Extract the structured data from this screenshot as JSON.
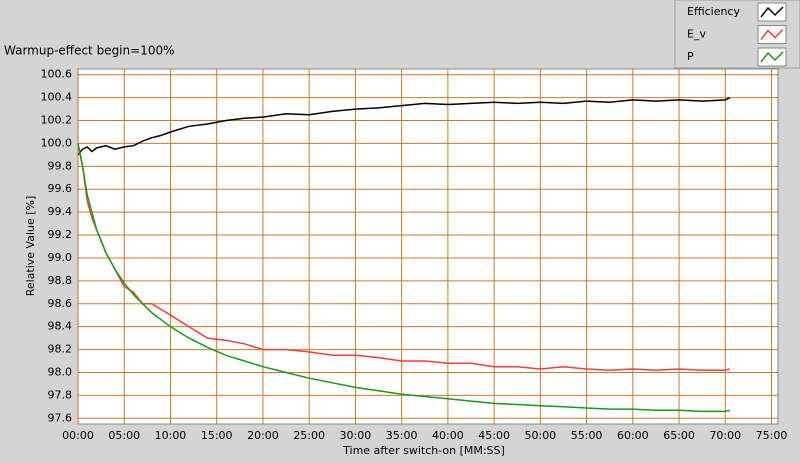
{
  "chart_data": {
    "type": "line",
    "title": "Warmup-effect begin=100%",
    "x_label": "Time after switch-on [MM:SS]",
    "y_label": "Relative Value [%]",
    "x": [
      0,
      0.5,
      1,
      1.5,
      2,
      3,
      4,
      5,
      6,
      7,
      8,
      9,
      10,
      12,
      14,
      16,
      18,
      20,
      22.5,
      25,
      27.5,
      30,
      32.5,
      35,
      37.5,
      40,
      42.5,
      45,
      47.5,
      50,
      52.5,
      55,
      57.5,
      60,
      62.5,
      65,
      67.5,
      70,
      70.5
    ],
    "series": [
      {
        "name": "Efficiency",
        "color": "#000000",
        "values": [
          99.9,
          99.95,
          99.97,
          99.93,
          99.96,
          99.98,
          99.95,
          99.97,
          99.98,
          100.02,
          100.05,
          100.07,
          100.1,
          100.15,
          100.17,
          100.2,
          100.22,
          100.23,
          100.26,
          100.25,
          100.28,
          100.3,
          100.31,
          100.33,
          100.35,
          100.34,
          100.35,
          100.36,
          100.35,
          100.36,
          100.35,
          100.37,
          100.36,
          100.38,
          100.37,
          100.38,
          100.37,
          100.38,
          100.4
        ]
      },
      {
        "name": "E_v",
        "color": "#ff3b3b",
        "values": [
          100,
          99.8,
          99.5,
          99.35,
          99.25,
          99.05,
          98.9,
          98.75,
          98.7,
          98.6,
          98.6,
          98.55,
          98.5,
          98.4,
          98.3,
          98.28,
          98.25,
          98.2,
          98.2,
          98.18,
          98.15,
          98.15,
          98.13,
          98.1,
          98.1,
          98.08,
          98.08,
          98.05,
          98.05,
          98.03,
          98.05,
          98.03,
          98.02,
          98.03,
          98.02,
          98.03,
          98.02,
          98.02,
          98.03
        ]
      },
      {
        "name": "P",
        "color": "#1a9a1a",
        "values": [
          100,
          99.8,
          99.55,
          99.4,
          99.25,
          99.05,
          98.9,
          98.78,
          98.68,
          98.6,
          98.52,
          98.46,
          98.4,
          98.3,
          98.22,
          98.15,
          98.1,
          98.05,
          98.0,
          97.95,
          97.91,
          97.87,
          97.84,
          97.81,
          97.79,
          97.77,
          97.75,
          97.73,
          97.72,
          97.71,
          97.7,
          97.69,
          97.68,
          97.68,
          97.67,
          97.67,
          97.66,
          97.66,
          97.67
        ]
      }
    ],
    "xlim": [
      0,
      75.7
    ],
    "xticks": [
      {
        "value": 0,
        "label": "00:00"
      },
      {
        "value": 5,
        "label": "05:00"
      },
      {
        "value": 10,
        "label": "10:00"
      },
      {
        "value": 15,
        "label": "15:00"
      },
      {
        "value": 20,
        "label": "20:00"
      },
      {
        "value": 25,
        "label": "25:00"
      },
      {
        "value": 30,
        "label": "30:00"
      },
      {
        "value": 35,
        "label": "35:00"
      },
      {
        "value": 40,
        "label": "40:00"
      },
      {
        "value": 45,
        "label": "45:00"
      },
      {
        "value": 50,
        "label": "50:00"
      },
      {
        "value": 55,
        "label": "55:00"
      },
      {
        "value": 60,
        "label": "60:00"
      },
      {
        "value": 65,
        "label": "65:00"
      },
      {
        "value": 70,
        "label": "70:00"
      },
      {
        "value": 75,
        "label": "75:00"
      }
    ],
    "ylim": [
      97.55,
      100.65
    ],
    "yticks": [
      97.6,
      97.8,
      {
        "value": 98,
        "label": "98.0"
      },
      98.2,
      98.4,
      98.6,
      98.8,
      {
        "value": 99,
        "label": "99.0"
      },
      99.2,
      99.4,
      99.6,
      99.8,
      {
        "value": 100,
        "label": "100.0"
      },
      100.2,
      100.4,
      100.6
    ],
    "grid": true,
    "legend_position": "top-right"
  }
}
